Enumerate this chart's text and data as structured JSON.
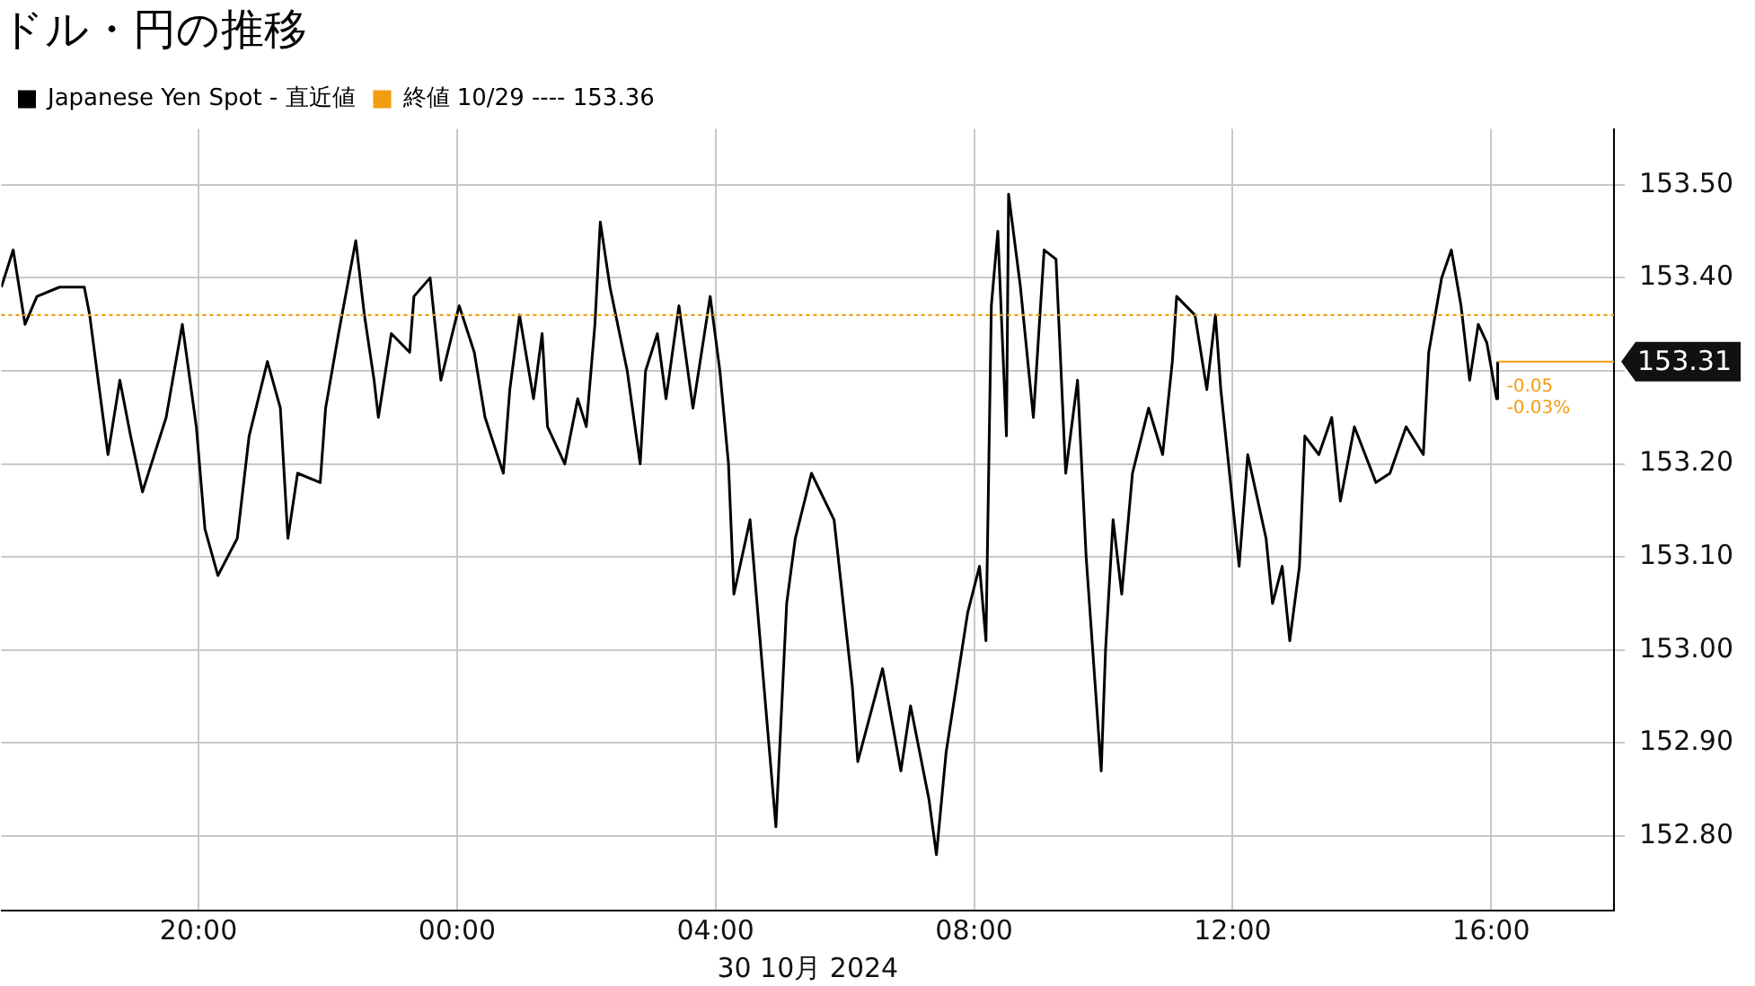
{
  "chart_data": {
    "type": "line",
    "title": "ドル・円の推移",
    "xlabel": "30 10月 2024",
    "series": [
      {
        "name": "Japanese Yen Spot - 直近値",
        "color": "#000000",
        "x": [
          "2024-10-29T16:57",
          "2024-10-29T17:08",
          "2024-10-29T17:19",
          "2024-10-29T17:30",
          "2024-10-29T17:51",
          "2024-10-29T18:14",
          "2024-10-29T18:19",
          "2024-10-29T18:28",
          "2024-10-29T18:36",
          "2024-10-29T18:47",
          "2024-10-29T18:57",
          "2024-10-29T19:08",
          "2024-10-29T19:30",
          "2024-10-29T19:45",
          "2024-10-29T19:58",
          "2024-10-29T20:06",
          "2024-10-29T20:18",
          "2024-10-29T20:36",
          "2024-10-29T20:47",
          "2024-10-29T21:04",
          "2024-10-29T21:16",
          "2024-10-29T21:23",
          "2024-10-29T21:32",
          "2024-10-29T21:53",
          "2024-10-29T21:58",
          "2024-10-29T22:10",
          "2024-10-29T22:18",
          "2024-10-29T22:26",
          "2024-10-29T22:34",
          "2024-10-29T22:43",
          "2024-10-29T22:47",
          "2024-10-29T22:59",
          "2024-10-29T23:16",
          "2024-10-29T23:20",
          "2024-10-29T23:35",
          "2024-10-29T23:45",
          "2024-10-30T00:02",
          "2024-10-30T00:16",
          "2024-10-30T00:26",
          "2024-10-30T00:43",
          "2024-10-30T00:49",
          "2024-10-30T00:58",
          "2024-10-30T01:11",
          "2024-10-30T01:19",
          "2024-10-30T01:24",
          "2024-10-30T01:40",
          "2024-10-30T01:52",
          "2024-10-30T02:00",
          "2024-10-30T02:08",
          "2024-10-30T02:13",
          "2024-10-30T02:22",
          "2024-10-30T02:38",
          "2024-10-30T02:50",
          "2024-10-30T02:55",
          "2024-10-30T03:06",
          "2024-10-30T03:14",
          "2024-10-30T03:26",
          "2024-10-30T03:39",
          "2024-10-30T03:55",
          "2024-10-30T04:04",
          "2024-10-30T04:12",
          "2024-10-30T04:17",
          "2024-10-30T04:32",
          "2024-10-30T04:45",
          "2024-10-30T04:56",
          "2024-10-30T05:06",
          "2024-10-30T05:14",
          "2024-10-30T05:29",
          "2024-10-30T05:50",
          "2024-10-30T06:07",
          "2024-10-30T06:12",
          "2024-10-30T06:35",
          "2024-10-30T06:52",
          "2024-10-30T07:01",
          "2024-10-30T07:18",
          "2024-10-30T07:25",
          "2024-10-30T07:34",
          "2024-10-30T07:46",
          "2024-10-30T07:54",
          "2024-10-30T08:05",
          "2024-10-30T08:11",
          "2024-10-30T08:16",
          "2024-10-30T08:22",
          "2024-10-30T08:30",
          "2024-10-30T08:32",
          "2024-10-30T08:43",
          "2024-10-30T08:55",
          "2024-10-30T09:05",
          "2024-10-30T09:16",
          "2024-10-30T09:25",
          "2024-10-30T09:36",
          "2024-10-30T09:44",
          "2024-10-30T09:58",
          "2024-10-30T10:02",
          "2024-10-30T10:09",
          "2024-10-30T10:17",
          "2024-10-30T10:27",
          "2024-10-30T10:42",
          "2024-10-30T10:55",
          "2024-10-30T11:04",
          "2024-10-30T11:08",
          "2024-10-30T11:25",
          "2024-10-30T11:36",
          "2024-10-30T11:44",
          "2024-10-30T11:49",
          "2024-10-30T11:58",
          "2024-10-30T12:06",
          "2024-10-30T12:14",
          "2024-10-30T12:31",
          "2024-10-30T12:37",
          "2024-10-30T12:46",
          "2024-10-30T12:53",
          "2024-10-30T13:02",
          "2024-10-30T13:07",
          "2024-10-30T13:20",
          "2024-10-30T13:32",
          "2024-10-30T13:40",
          "2024-10-30T13:53",
          "2024-10-30T14:13",
          "2024-10-30T14:26",
          "2024-10-30T14:41",
          "2024-10-30T14:57",
          "2024-10-30T15:02",
          "2024-10-30T15:14",
          "2024-10-30T15:23",
          "2024-10-30T15:32",
          "2024-10-30T15:40",
          "2024-10-30T15:48",
          "2024-10-30T15:56",
          "2024-10-30T16:05",
          "2024-10-30T16:06"
        ],
        "values": [
          153.39,
          153.43,
          153.35,
          153.38,
          153.39,
          153.39,
          153.36,
          153.28,
          153.21,
          153.29,
          153.23,
          153.17,
          153.25,
          153.35,
          153.24,
          153.13,
          153.08,
          153.12,
          153.23,
          153.31,
          153.26,
          153.12,
          153.19,
          153.18,
          153.26,
          153.34,
          153.39,
          153.44,
          153.36,
          153.29,
          153.25,
          153.34,
          153.32,
          153.38,
          153.4,
          153.29,
          153.37,
          153.32,
          153.25,
          153.19,
          153.28,
          153.36,
          153.27,
          153.34,
          153.24,
          153.2,
          153.27,
          153.24,
          153.35,
          153.46,
          153.39,
          153.3,
          153.2,
          153.3,
          153.34,
          153.27,
          153.37,
          153.26,
          153.38,
          153.3,
          153.2,
          153.06,
          153.14,
          152.96,
          152.81,
          153.05,
          153.12,
          153.19,
          153.14,
          152.96,
          152.88,
          152.98,
          152.87,
          152.94,
          152.84,
          152.78,
          152.89,
          152.98,
          153.04,
          153.09,
          153.01,
          153.37,
          153.45,
          153.23,
          153.49,
          153.39,
          153.25,
          153.43,
          153.42,
          153.19,
          153.29,
          153.1,
          152.87,
          153.0,
          153.14,
          153.06,
          153.19,
          153.26,
          153.21,
          153.31,
          153.38,
          153.36,
          153.28,
          153.36,
          153.28,
          153.18,
          153.09,
          153.21,
          153.12,
          153.05,
          153.09,
          153.01,
          153.09,
          153.23,
          153.21,
          153.25,
          153.16,
          153.24,
          153.18,
          153.19,
          153.24,
          153.21,
          153.32,
          153.4,
          153.43,
          153.37,
          153.29,
          153.35,
          153.33,
          153.27,
          153.31
        ]
      }
    ],
    "xlim": [
      "2024-10-29T16:57",
      "2024-10-30T17:54"
    ],
    "xticks": [
      {
        "value": "2024-10-29T20:00",
        "label": "20:00"
      },
      {
        "value": "2024-10-30T00:00",
        "label": "00:00"
      },
      {
        "value": "2024-10-30T04:00",
        "label": "04:00"
      },
      {
        "value": "2024-10-30T08:00",
        "label": "08:00"
      },
      {
        "value": "2024-10-30T12:00",
        "label": "12:00"
      },
      {
        "value": "2024-10-30T16:00",
        "label": "16:00"
      }
    ],
    "ylim": [
      152.72,
      153.56
    ],
    "yticks": [
      {
        "value": 152.8,
        "label": "152.80"
      },
      {
        "value": 152.9,
        "label": "152.90"
      },
      {
        "value": 153.0,
        "label": "153.00"
      },
      {
        "value": 153.1,
        "label": "153.10"
      },
      {
        "value": 153.2,
        "label": "153.20"
      },
      {
        "value": 153.3,
        "label": null
      },
      {
        "value": 153.4,
        "label": "153.40"
      },
      {
        "value": 153.5,
        "label": "153.50"
      }
    ],
    "ref_lines": [
      {
        "axis": "y",
        "value": 153.36,
        "label": "終値 10/29 ---- 153.36",
        "color": "#f39c12",
        "line_style": "dotted"
      }
    ],
    "annotations": [
      {
        "text": "153.31",
        "x": "2024-10-30T16:06",
        "y": 153.31
      },
      {
        "text": "-0.05",
        "x": "2024-10-30T16:06",
        "y": 153.31
      },
      {
        "text": "-0.03%",
        "x": "2024-10-30T16:06",
        "y": 153.31
      }
    ],
    "grid": true,
    "legend": "top left",
    "marker": "none",
    "line_style": "solid"
  }
}
